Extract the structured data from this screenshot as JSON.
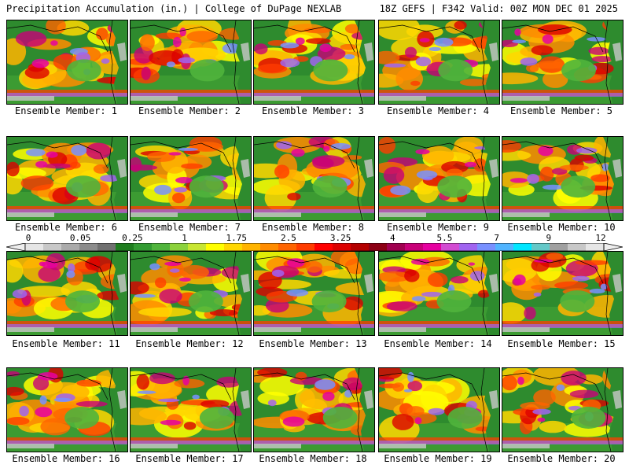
{
  "header": {
    "title_left": "Precipitation Accumulation (in.) | College of DuPage NEXLAB",
    "title_right": "18Z GEFS | F342 Valid: 00Z MON DEC 01 2025"
  },
  "panels": [
    {
      "label": "Ensemble Member: 1"
    },
    {
      "label": "Ensemble Member: 2"
    },
    {
      "label": "Ensemble Member: 3"
    },
    {
      "label": "Ensemble Member: 4"
    },
    {
      "label": "Ensemble Member: 5"
    },
    {
      "label": "Ensemble Member: 6"
    },
    {
      "label": "Ensemble Member: 7"
    },
    {
      "label": "Ensemble Member: 8"
    },
    {
      "label": "Ensemble Member: 9"
    },
    {
      "label": "Ensemble Member: 10"
    },
    {
      "label": "Ensemble Member: 11"
    },
    {
      "label": "Ensemble Member: 12"
    },
    {
      "label": "Ensemble Member: 13"
    },
    {
      "label": "Ensemble Member: 14"
    },
    {
      "label": "Ensemble Member: 15"
    },
    {
      "label": "Ensemble Member: 16"
    },
    {
      "label": "Ensemble Member: 17"
    },
    {
      "label": "Ensemble Member: 18"
    },
    {
      "label": "Ensemble Member: 19"
    },
    {
      "label": "Ensemble Member: 20"
    }
  ],
  "colorbar": {
    "labels": [
      "0",
      "0.05",
      "0.25",
      "1",
      "1.75",
      "2.5",
      "3.25",
      "4",
      "5.5",
      "7",
      "9",
      "12"
    ],
    "colors": [
      "#e6e6e6",
      "#c8c8c8",
      "#aaaaaa",
      "#8c8c8c",
      "#707070",
      "#1e7d1e",
      "#329b32",
      "#50b43c",
      "#8cd23c",
      "#c8e632",
      "#ffff00",
      "#ffd700",
      "#ffb400",
      "#ff8c00",
      "#ff6400",
      "#ff3c00",
      "#ff0000",
      "#dc0000",
      "#b40000",
      "#8c0014",
      "#a00050",
      "#c80078",
      "#e600a0",
      "#d24bd2",
      "#a064f0",
      "#7890ff",
      "#50b4ff",
      "#00e6ff",
      "#64c8c8",
      "#a0a0a0",
      "#c8c8c8",
      "#e6e6e6"
    ]
  }
}
